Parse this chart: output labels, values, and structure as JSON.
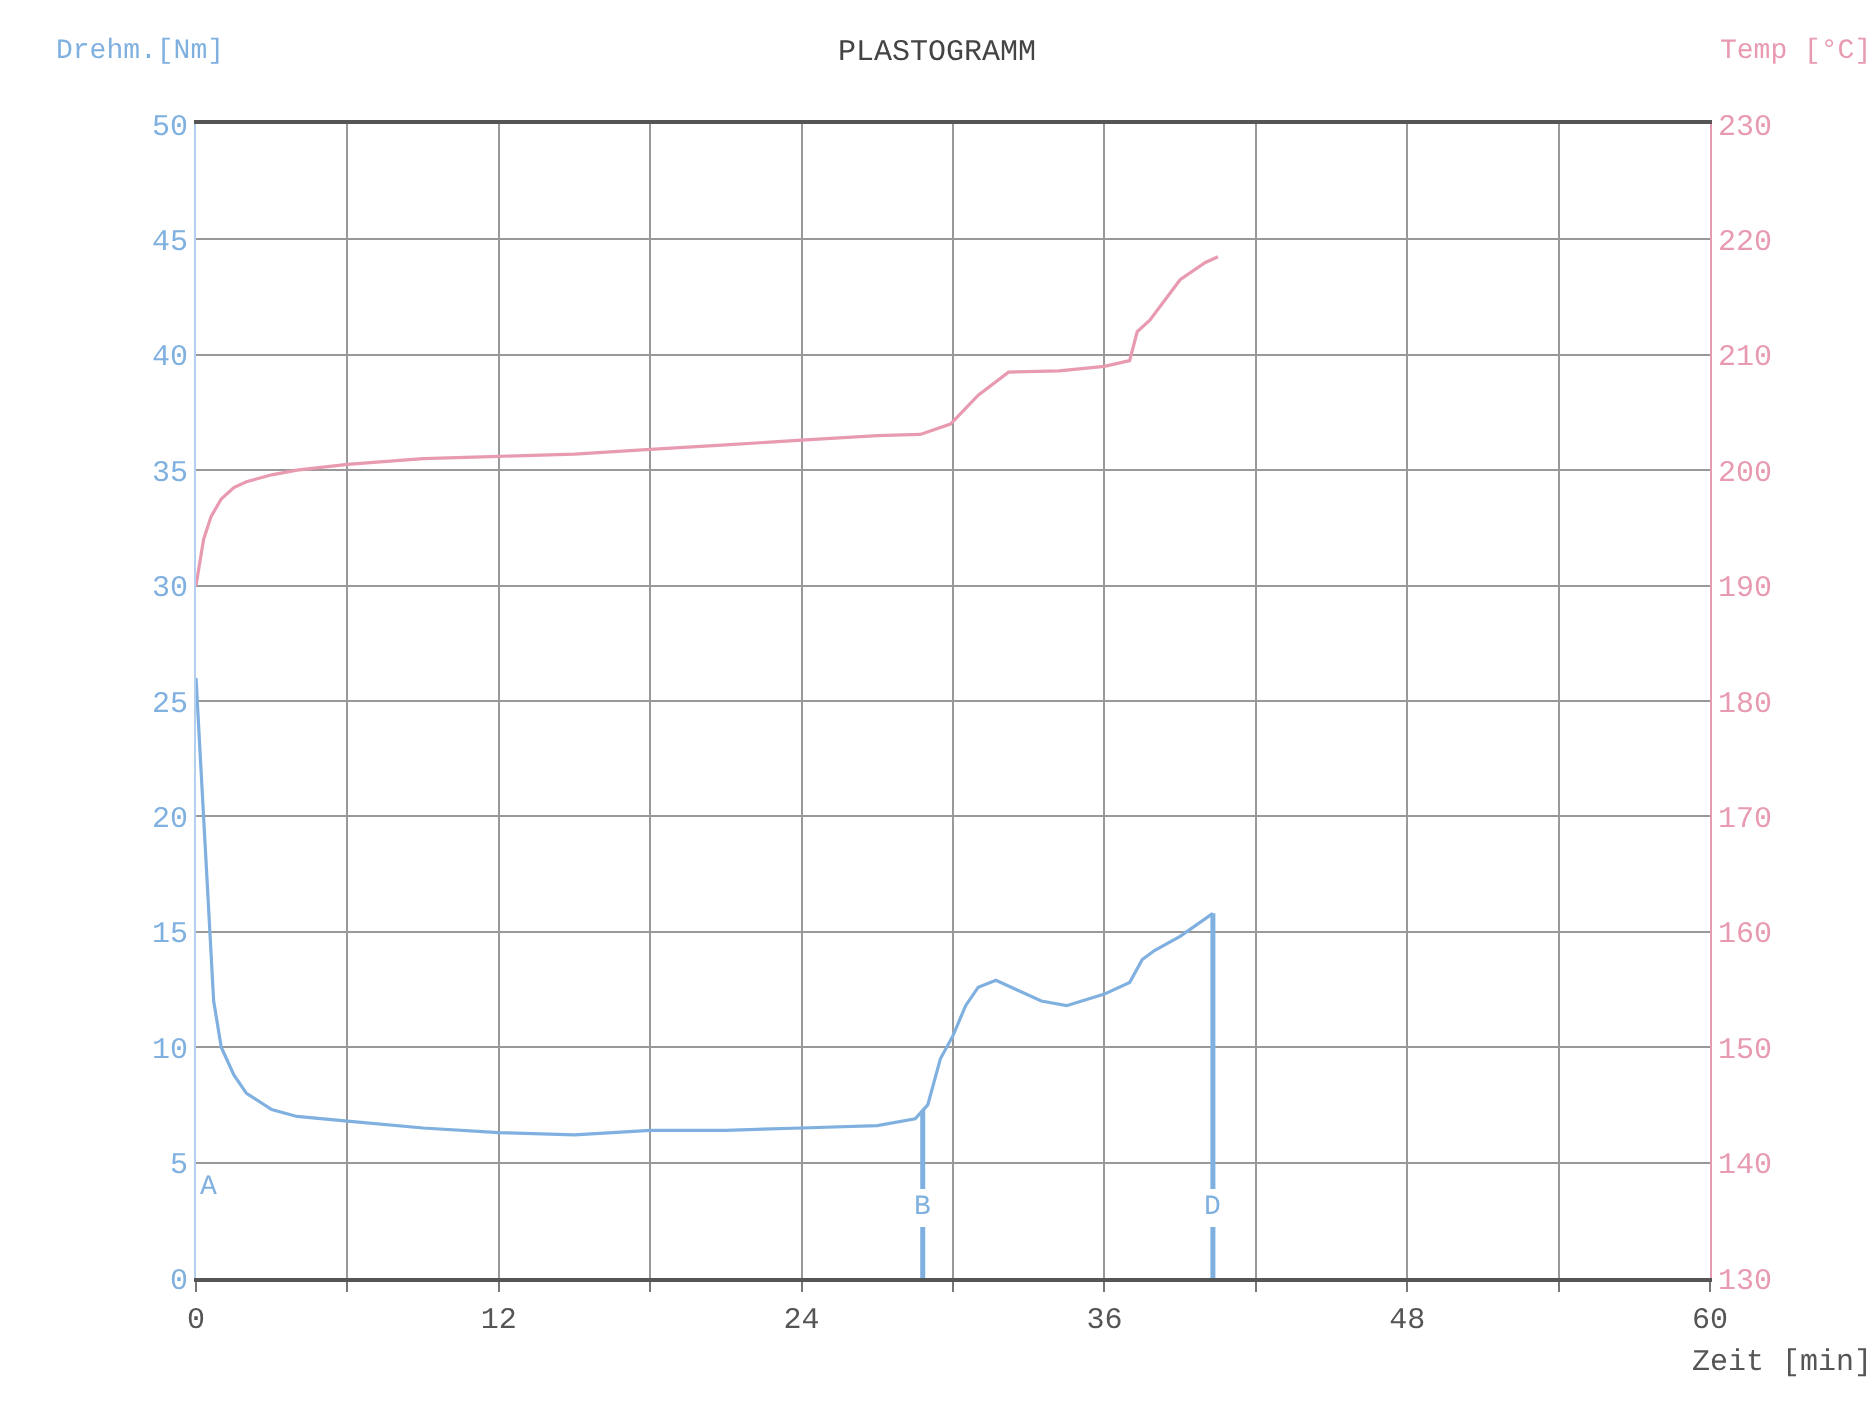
{
  "chart_data": {
    "type": "line",
    "title": "PLASTOGRAMM",
    "xlabel": "Zeit [min]",
    "ylabel": "Drehm.[Nm]",
    "y2label": "Temp [°C]",
    "xlim": [
      0,
      60
    ],
    "xticks": [
      0,
      {
        "value": 6,
        "label": null
      },
      12,
      {
        "value": 18,
        "label": null
      },
      24,
      {
        "value": 30,
        "label": null
      },
      36,
      {
        "value": 42,
        "label": null
      },
      48,
      {
        "value": 54,
        "label": null
      },
      60
    ],
    "ylim": [
      0,
      50
    ],
    "yticks": [
      0,
      5,
      10,
      15,
      20,
      25,
      30,
      35,
      40,
      45,
      50
    ],
    "y2lim": [
      130,
      230
    ],
    "y2ticks": [
      130,
      140,
      150,
      160,
      170,
      180,
      190,
      200,
      210,
      220,
      230
    ],
    "grid": true,
    "marker": "none",
    "line_style": "solid",
    "series": [
      {
        "color": "#7fb0e0",
        "x": [
          0,
          0.4,
          0.7,
          1,
          1.5,
          2,
          3,
          4,
          6,
          9,
          12,
          15,
          18,
          21,
          24,
          27,
          28.5,
          29,
          29.5,
          30,
          30.5,
          31,
          31.7,
          32.5,
          33.5,
          34.5,
          36,
          37,
          37.5,
          38,
          39,
          40.3
        ],
        "values": [
          26,
          18,
          12,
          10,
          8.8,
          8,
          7.3,
          7,
          6.8,
          6.5,
          6.3,
          6.2,
          6.4,
          6.4,
          6.5,
          6.6,
          6.9,
          7.5,
          9.5,
          10.5,
          11.8,
          12.6,
          12.9,
          12.5,
          12,
          11.8,
          12.3,
          12.8,
          13.8,
          14.2,
          14.8,
          15.8
        ]
      },
      {
        "color": "#e89ab0",
        "axis": "y2",
        "x": [
          0,
          0.3,
          0.6,
          1,
          1.5,
          2,
          3,
          4,
          6,
          9,
          12,
          15,
          18,
          21,
          24,
          27,
          28.7,
          29.9,
          31,
          32.2,
          34.2,
          36,
          37,
          37.3,
          37.8,
          39,
          40,
          40.5
        ],
        "values": [
          190,
          194,
          196,
          197.5,
          198.5,
          199,
          199.6,
          200,
          200.5,
          201,
          201.2,
          201.4,
          201.8,
          202.2,
          202.6,
          203,
          203.1,
          204,
          206.5,
          208.5,
          208.6,
          209,
          209.5,
          212,
          213,
          216.5,
          218,
          218.5
        ]
      }
    ],
    "annotations": [
      "A"
    ],
    "ref_lines": [
      {
        "axis": "x",
        "value": 28.8,
        "label": "B",
        "color": "#7fb0e0"
      },
      {
        "axis": "x",
        "value": 40.3,
        "label": "D",
        "color": "#7fb0e0"
      }
    ]
  }
}
